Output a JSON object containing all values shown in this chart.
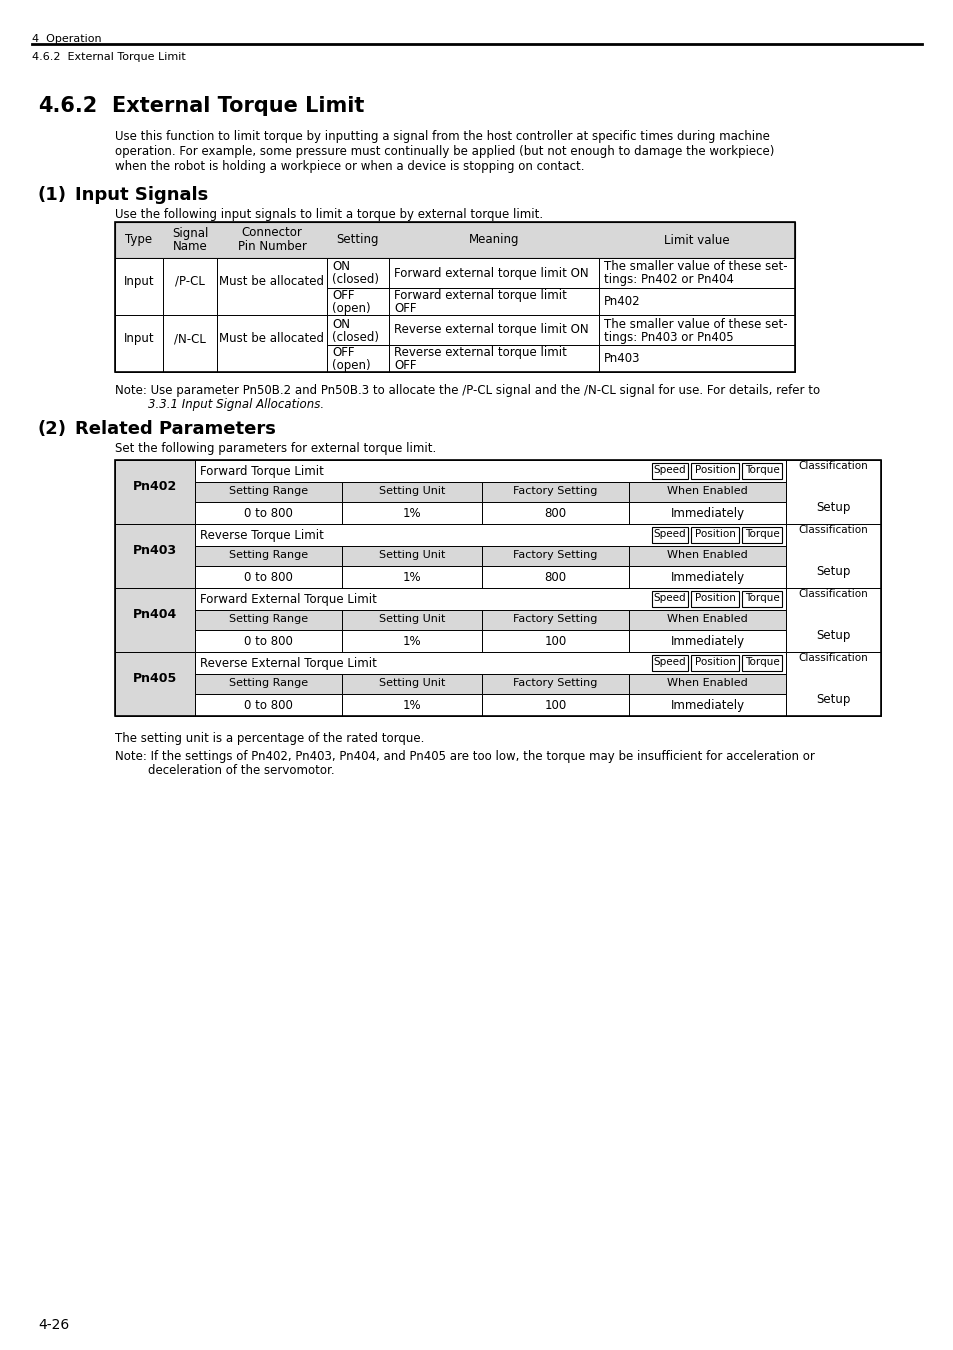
{
  "page_header_section": "4  Operation",
  "page_subheader": "4.6.2  External Torque Limit",
  "section_title_num": "4.6.2",
  "section_title": "External Torque Limit",
  "intro_text_lines": [
    "Use this function to limit torque by inputting a signal from the host controller at specific times during machine",
    "operation. For example, some pressure must continually be applied (but not enough to damage the workpiece)",
    "when the robot is holding a workpiece or when a device is stopping on contact."
  ],
  "subsection1_num": "(1)",
  "subsection1_title": "Input Signals",
  "subsection1_intro": "Use the following input signals to limit a torque by external torque limit.",
  "input_table_headers": [
    "Type",
    "Signal\nName",
    "Connector\nPin Number",
    "Setting",
    "Meaning",
    "Limit value"
  ],
  "input_table_col_widths": [
    48,
    54,
    110,
    62,
    210,
    196
  ],
  "input_table_rows": [
    {
      "type": "Input",
      "signal": "/P-CL",
      "connector": "Must be allocated",
      "setting": "ON\n(closed)",
      "meaning": "Forward external torque limit ON",
      "limit": "The smaller value of these set-\ntings: Pn402 or Pn404"
    },
    {
      "type": "Input",
      "signal": "/P-CL",
      "connector": "Must be allocated",
      "setting": "OFF\n(open)",
      "meaning": "Forward external torque limit\nOFF",
      "limit": "Pn402"
    },
    {
      "type": "Input",
      "signal": "/N-CL",
      "connector": "Must be allocated",
      "setting": "ON\n(closed)",
      "meaning": "Reverse external torque limit ON",
      "limit": "The smaller value of these set-\ntings: Pn403 or Pn405"
    },
    {
      "type": "Input",
      "signal": "/N-CL",
      "connector": "Must be allocated",
      "setting": "OFF\n(open)",
      "meaning": "Reverse external torque limit\nOFF",
      "limit": "Pn403"
    }
  ],
  "note1_line1": "Note: Use parameter Pn50B.2 and Pn50B.3 to allocate the /P-CL signal and the /N-CL signal for use. For details, refer to",
  "note1_line2": "3.3.1 Input Signal Allocations.",
  "subsection2_num": "(2)",
  "subsection2_title": "Related Parameters",
  "subsection2_intro": "Set the following parameters for external torque limit.",
  "param_table_col_widths": [
    80,
    147,
    140,
    147,
    157,
    95
  ],
  "param_blocks": [
    {
      "id": "Pn402",
      "title": "Forward Torque Limit",
      "badges": [
        "Speed",
        "Position",
        "Torque"
      ],
      "setting_range": "0 to 800",
      "setting_unit": "1%",
      "factory_setting": "800",
      "when_enabled": "Immediately",
      "classification": "Setup"
    },
    {
      "id": "Pn403",
      "title": "Reverse Torque Limit",
      "badges": [
        "Speed",
        "Position",
        "Torque"
      ],
      "setting_range": "0 to 800",
      "setting_unit": "1%",
      "factory_setting": "800",
      "when_enabled": "Immediately",
      "classification": "Setup"
    },
    {
      "id": "Pn404",
      "title": "Forward External Torque Limit",
      "badges": [
        "Speed",
        "Position",
        "Torque"
      ],
      "setting_range": "0 to 800",
      "setting_unit": "1%",
      "factory_setting": "100",
      "when_enabled": "Immediately",
      "classification": "Setup"
    },
    {
      "id": "Pn405",
      "title": "Reverse External Torque Limit",
      "badges": [
        "Speed",
        "Position",
        "Torque"
      ],
      "setting_range": "0 to 800",
      "setting_unit": "1%",
      "factory_setting": "100",
      "when_enabled": "Immediately",
      "classification": "Setup"
    }
  ],
  "footer_note1": "The setting unit is a percentage of the rated torque.",
  "footer_note2_line1": "Note: If the settings of Pn402, Pn403, Pn404, and Pn405 are too low, the torque may be insufficient for acceleration or",
  "footer_note2_line2": "deceleration of the servomotor.",
  "page_number": "4-26",
  "bg_color": "#ffffff",
  "table_header_bg": "#d8d8d8",
  "text_color": "#000000"
}
